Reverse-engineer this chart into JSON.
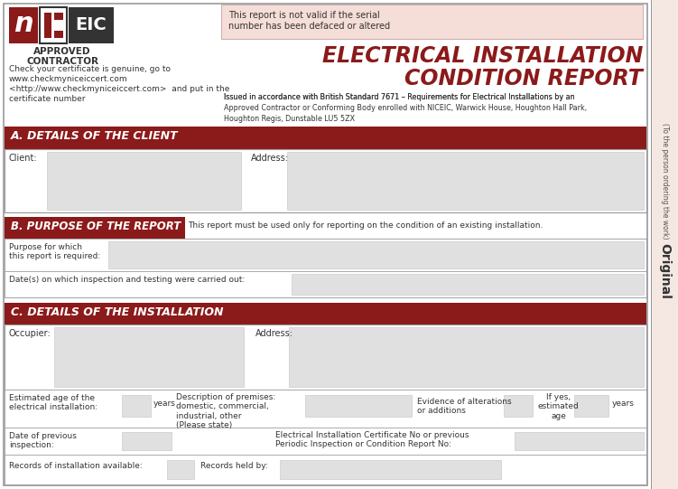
{
  "bg_color": "#ffffff",
  "dark_red": "#8B1A1A",
  "light_pink_warn": "#f5ddd8",
  "light_gray": "#e0e0e0",
  "med_gray": "#cccccc",
  "dark_gray": "#444444",
  "text_color": "#222222",
  "border_color": "#999999",
  "right_strip_color": "#f5e8e2",
  "section_a": "A. DETAILS OF THE CLIENT",
  "section_b": "B. PURPOSE OF THE REPORT",
  "section_c": "C. DETAILS OF THE INSTALLATION",
  "warning_line1": "This report is not valid if the serial",
  "warning_line2": "number has been defaced or altered",
  "main_title_line1": "ELECTRICAL INSTALLATION",
  "main_title_line2": "CONDITION REPORT",
  "issued_text": "Issued in accordance with British Standard 7671 – Requirements for Electrical Installations by an Approved Contractor or Conforming Body enrolled with NICEIC, Warwick House, Houghton Hall Park, Houghton Regis, Dunstable LU5 5ZX",
  "check_line1": "Check your certificate is genuine, go to",
  "check_line2": "www.checkmyniceiccert.com",
  "check_line3": "<http://www.checkmyniceiccert.com>  and put in the",
  "check_line4": "certificate number",
  "purpose_note": "This report must be used only for reporting on the condition of an existing installation.",
  "original_text": "Original",
  "original_sub": "(To the person ordering the work)",
  "approved": "APPROVED",
  "contractor": "CONTRACTOR",
  "fig_w": 7.51,
  "fig_h": 5.41,
  "dpi": 100
}
